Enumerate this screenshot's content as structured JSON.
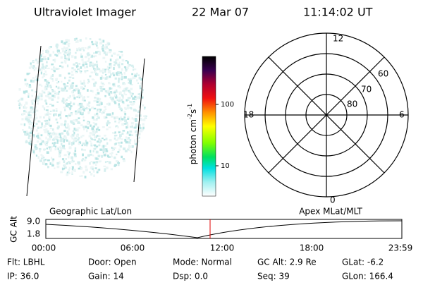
{
  "header": {
    "instrument": "Ultraviolet Imager",
    "date": "22 Mar 07",
    "time": "11:14:02 UT"
  },
  "colorbar": {
    "unit": {
      "base1": "photon cm",
      "exp1": "-2",
      "base2": "s",
      "exp2": "-1"
    },
    "ticks": [
      "100",
      "10"
    ]
  },
  "polar": {
    "mlt_labels": {
      "top": "12",
      "right": "6",
      "bottom": "0",
      "left": "18"
    },
    "lat_labels": [
      "60",
      "70",
      "80"
    ]
  },
  "timeline": {
    "axis_label": "GC Alt",
    "y_labels": [
      "9.0",
      "1.8"
    ],
    "left_title": "Geographic Lat/Lon",
    "right_title": "Apex MLat/MLT",
    "x_labels": [
      "00:00",
      "06:00",
      "12:00",
      "18:00",
      "23:59"
    ]
  },
  "footer": {
    "rows": [
      [
        "Flt: LBHL",
        "Door: Open",
        "Mode: Normal",
        "GC Alt: 2.9 Re",
        "GLat: -6.2"
      ],
      [
        "IP: 36.0",
        "Gain: 14",
        "Dsp: 0.0",
        "Seq: 39",
        "GLon: 166.4"
      ]
    ]
  }
}
